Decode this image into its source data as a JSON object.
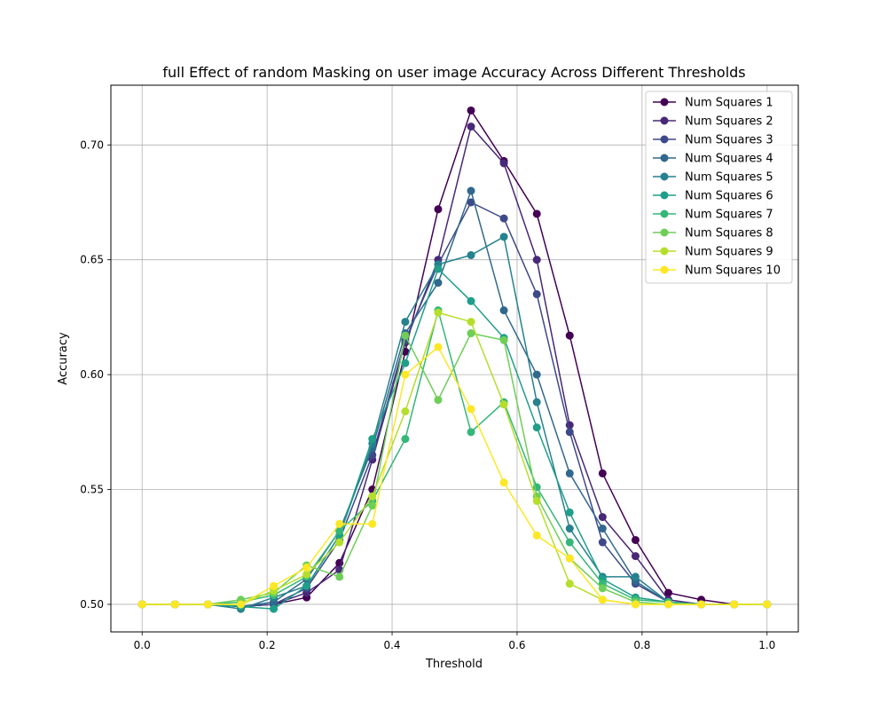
{
  "chart_data": {
    "type": "line",
    "title": "full Effect of random Masking on user image Accuracy Across Different Thresholds",
    "xlabel": "Threshold",
    "ylabel": "Accuracy",
    "xlim": [
      -0.05,
      1.05
    ],
    "ylim": [
      0.488,
      0.726
    ],
    "xticks": [
      0.0,
      0.2,
      0.4,
      0.6,
      0.8,
      1.0
    ],
    "xtick_labels": [
      "0.0",
      "0.2",
      "0.4",
      "0.6",
      "0.8",
      "1.0"
    ],
    "yticks": [
      0.5,
      0.55,
      0.6,
      0.65,
      0.7
    ],
    "ytick_labels": [
      "0.50",
      "0.55",
      "0.60",
      "0.65",
      "0.70"
    ],
    "grid": true,
    "legend_position": "top-right",
    "markers": "circle",
    "x": [
      0.0,
      0.0526,
      0.1053,
      0.1579,
      0.2105,
      0.2632,
      0.3158,
      0.3684,
      0.4211,
      0.4737,
      0.5263,
      0.5789,
      0.6316,
      0.6842,
      0.7368,
      0.7895,
      0.8421,
      0.8947,
      0.9474,
      1.0
    ],
    "series": [
      {
        "name": "Num Squares 1",
        "color": "#440154",
        "values": [
          0.5,
          0.5,
          0.5,
          0.499,
          0.5,
          0.503,
          0.518,
          0.55,
          0.61,
          0.672,
          0.715,
          0.693,
          0.67,
          0.617,
          0.557,
          0.528,
          0.505,
          0.502,
          0.5,
          0.5
        ]
      },
      {
        "name": "Num Squares 2",
        "color": "#482878",
        "values": [
          0.5,
          0.5,
          0.5,
          0.499,
          0.5,
          0.505,
          0.515,
          0.563,
          0.614,
          0.65,
          0.708,
          0.692,
          0.65,
          0.578,
          0.538,
          0.521,
          0.502,
          0.5,
          0.5,
          0.5
        ]
      },
      {
        "name": "Num Squares 3",
        "color": "#3e4989",
        "values": [
          0.5,
          0.5,
          0.5,
          0.499,
          0.5,
          0.507,
          0.528,
          0.565,
          0.615,
          0.648,
          0.675,
          0.668,
          0.635,
          0.575,
          0.527,
          0.509,
          0.501,
          0.5,
          0.5,
          0.5
        ]
      },
      {
        "name": "Num Squares 4",
        "color": "#31688e",
        "values": [
          0.5,
          0.5,
          0.5,
          0.499,
          0.501,
          0.511,
          0.532,
          0.568,
          0.618,
          0.64,
          0.68,
          0.628,
          0.6,
          0.557,
          0.533,
          0.51,
          0.501,
          0.5,
          0.5,
          0.5
        ]
      },
      {
        "name": "Num Squares 5",
        "color": "#26828e",
        "values": [
          0.5,
          0.5,
          0.5,
          0.498,
          0.503,
          0.508,
          0.53,
          0.57,
          0.623,
          0.648,
          0.652,
          0.66,
          0.588,
          0.533,
          0.512,
          0.512,
          0.501,
          0.5,
          0.5,
          0.5
        ]
      },
      {
        "name": "Num Squares 6",
        "color": "#1f9e89",
        "values": [
          0.5,
          0.5,
          0.5,
          0.499,
          0.498,
          0.508,
          0.53,
          0.572,
          0.605,
          0.646,
          0.632,
          0.616,
          0.577,
          0.54,
          0.511,
          0.503,
          0.501,
          0.5,
          0.5,
          0.5
        ]
      },
      {
        "name": "Num Squares 7",
        "color": "#35b779",
        "values": [
          0.5,
          0.5,
          0.5,
          0.501,
          0.504,
          0.512,
          0.532,
          0.545,
          0.572,
          0.628,
          0.575,
          0.588,
          0.551,
          0.527,
          0.509,
          0.502,
          0.501,
          0.5,
          0.5,
          0.5
        ]
      },
      {
        "name": "Num Squares 8",
        "color": "#6ece58",
        "values": [
          0.5,
          0.5,
          0.5,
          0.502,
          0.505,
          0.517,
          0.512,
          0.543,
          0.617,
          0.589,
          0.618,
          0.615,
          0.547,
          0.52,
          0.507,
          0.501,
          0.5,
          0.5,
          0.5,
          0.5
        ]
      },
      {
        "name": "Num Squares 9",
        "color": "#b5de2b",
        "values": [
          0.5,
          0.5,
          0.5,
          0.5,
          0.506,
          0.513,
          0.527,
          0.547,
          0.584,
          0.627,
          0.623,
          0.587,
          0.545,
          0.509,
          0.502,
          0.5,
          0.5,
          0.5,
          0.5,
          0.5
        ]
      },
      {
        "name": "Num Squares 10",
        "color": "#fde725",
        "values": [
          0.5,
          0.5,
          0.5,
          0.5,
          0.508,
          0.516,
          0.535,
          0.535,
          0.6,
          0.612,
          0.585,
          0.553,
          0.53,
          0.52,
          0.502,
          0.5,
          0.5,
          0.5,
          0.5,
          0.5
        ]
      }
    ]
  }
}
